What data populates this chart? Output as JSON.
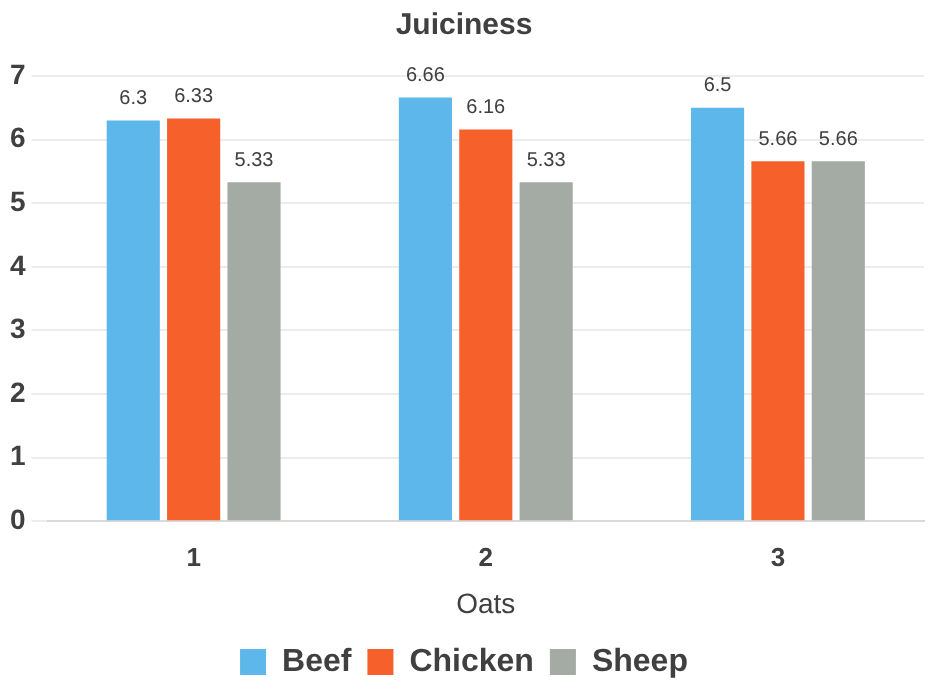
{
  "chart_data": {
    "type": "bar",
    "title": "Juiciness",
    "xlabel": "Oats",
    "categories": [
      "1",
      "2",
      "3"
    ],
    "series": [
      {
        "name": "Beef",
        "color": "#5db7ea",
        "values": [
          6.3,
          6.66,
          6.5
        ]
      },
      {
        "name": "Chicken",
        "color": "#f5602b",
        "values": [
          6.33,
          6.16,
          5.66
        ]
      },
      {
        "name": "Sheep",
        "color": "#a4aaa4",
        "values": [
          5.33,
          5.33,
          5.66
        ]
      }
    ],
    "ylim": [
      0,
      7
    ],
    "yticks": [
      0,
      1,
      2,
      3,
      4,
      5,
      6,
      7
    ],
    "grid": "y",
    "legend": "bottom",
    "data_labels": true
  }
}
